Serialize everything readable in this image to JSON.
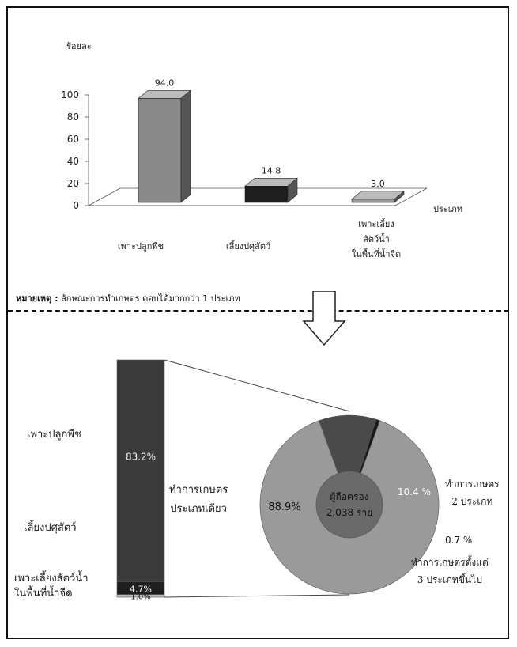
{
  "bar_chart": {
    "ylabel": "ร้อยละ",
    "xlabel": "ประเภท",
    "yticks": [
      "0",
      "20",
      "40",
      "60",
      "80",
      "100"
    ],
    "categories": [
      "เพาะปลูกพืช",
      "เลี้ยงปศุสัตว์",
      "เพาะเลี้ยง\nสัตว์น้ำ\nในพื้นที่น้ำจืด"
    ],
    "value_labels": [
      "94.0",
      "14.8",
      "3.0"
    ],
    "colors": [
      "#8a8a8a",
      "#1e1e1e",
      "#9a9a9a"
    ]
  },
  "note": {
    "label": "หมายเหตุ :",
    "text": "ลักษณะการทำเกษตร ตอบได้มากกว่า 1 ประเภท"
  },
  "stack": {
    "labels": [
      "เพาะปลูกพืช",
      "เลี้ยงปศุสัตว์",
      "เพาะเลี้ยงสัตว์น้ำ\nในพื้นที่น้ำจืด"
    ],
    "value_labels": [
      "83.2%",
      "4.7%",
      "1.0%"
    ],
    "caption": "ทำการเกษตร\nประเภทเดียว"
  },
  "donut": {
    "center_line1": "ผู้ถือครอง",
    "center_line2": "2,038 ราย",
    "value_labels": [
      "88.9%",
      "10.4 %",
      "0.7 %"
    ],
    "label_2": "ทำการเกษตร\n2 ประเภท",
    "label_3": "ทำการเกษตรตั้งแต่\n3 ประเภทขึ้นไป"
  },
  "chart_data": [
    {
      "type": "bar",
      "categories": [
        "เพาะปลูกพืช",
        "เลี้ยงปศุสัตว์",
        "เพาะเลี้ยงสัตว์น้ำในพื้นที่น้ำจืด"
      ],
      "values": [
        94.0,
        14.8,
        3.0
      ],
      "title": "",
      "xlabel": "ประเภท",
      "ylabel": "ร้อยละ",
      "ylim": [
        0,
        100
      ],
      "grid": false
    },
    {
      "type": "bar",
      "stacked": true,
      "categories": [
        "เพาะปลูกพืช",
        "เลี้ยงปศุสัตว์",
        "เพาะเลี้ยงสัตว์น้ำในพื้นที่น้ำจืด"
      ],
      "values": [
        83.2,
        4.7,
        1.0
      ],
      "title": "",
      "xlabel": "",
      "ylabel": ""
    },
    {
      "type": "pie",
      "categories": [
        "ทำการเกษตรประเภทเดียว",
        "ทำการเกษตร 2 ประเภท",
        "ทำการเกษตรตั้งแต่ 3 ประเภทขึ้นไป"
      ],
      "values": [
        88.9,
        10.4,
        0.7
      ],
      "title": "",
      "center_label": "ผู้ถือครอง 2,038 ราย"
    }
  ]
}
